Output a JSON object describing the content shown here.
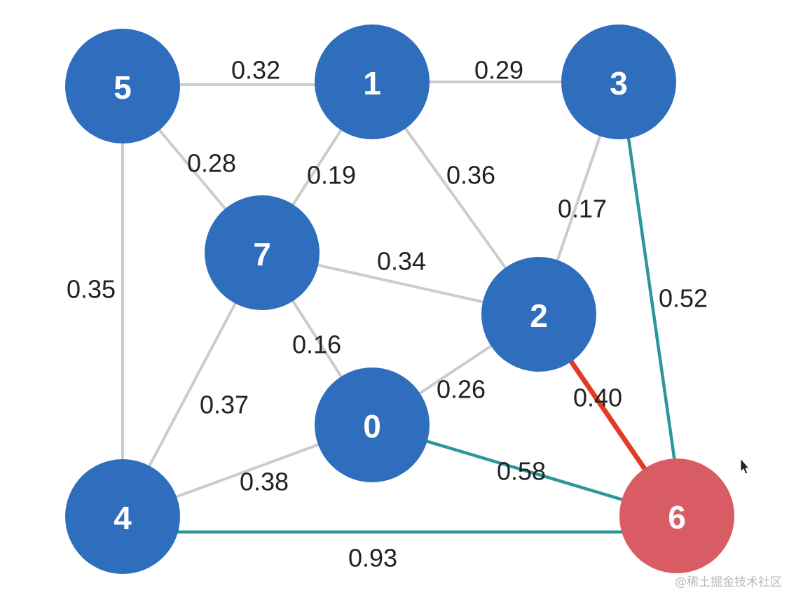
{
  "colors": {
    "node_default": "#2f6dbd",
    "node_highlight": "#d95b64",
    "edge_default": "#cccccc",
    "edge_mst": "#2a979a",
    "edge_current": "#e23a24"
  },
  "nodes": [
    {
      "id": "0",
      "label": "0",
      "state": "default"
    },
    {
      "id": "1",
      "label": "1",
      "state": "default"
    },
    {
      "id": "2",
      "label": "2",
      "state": "default"
    },
    {
      "id": "3",
      "label": "3",
      "state": "default"
    },
    {
      "id": "4",
      "label": "4",
      "state": "default"
    },
    {
      "id": "5",
      "label": "5",
      "state": "default"
    },
    {
      "id": "6",
      "label": "6",
      "state": "highlight"
    },
    {
      "id": "7",
      "label": "7",
      "state": "default"
    }
  ],
  "edges": [
    {
      "from": "5",
      "to": "1",
      "weight": "0.32",
      "state": "default"
    },
    {
      "from": "1",
      "to": "3",
      "weight": "0.29",
      "state": "default"
    },
    {
      "from": "5",
      "to": "7",
      "weight": "0.28",
      "state": "default"
    },
    {
      "from": "1",
      "to": "7",
      "weight": "0.19",
      "state": "default"
    },
    {
      "from": "1",
      "to": "2",
      "weight": "0.36",
      "state": "default"
    },
    {
      "from": "3",
      "to": "2",
      "weight": "0.17",
      "state": "default"
    },
    {
      "from": "5",
      "to": "4",
      "weight": "0.35",
      "state": "default"
    },
    {
      "from": "7",
      "to": "2",
      "weight": "0.34",
      "state": "default"
    },
    {
      "from": "3",
      "to": "6",
      "weight": "0.52",
      "state": "mst"
    },
    {
      "from": "7",
      "to": "0",
      "weight": "0.16",
      "state": "default"
    },
    {
      "from": "0",
      "to": "2",
      "weight": "0.26",
      "state": "default"
    },
    {
      "from": "2",
      "to": "6",
      "weight": "0.40",
      "state": "current"
    },
    {
      "from": "7",
      "to": "4",
      "weight": "0.37",
      "state": "default"
    },
    {
      "from": "0",
      "to": "6",
      "weight": "0.58",
      "state": "mst"
    },
    {
      "from": "4",
      "to": "0",
      "weight": "0.38",
      "state": "default"
    },
    {
      "from": "4",
      "to": "6",
      "weight": "0.93",
      "state": "mst"
    }
  ],
  "watermark": "@稀土掘金技术社区"
}
